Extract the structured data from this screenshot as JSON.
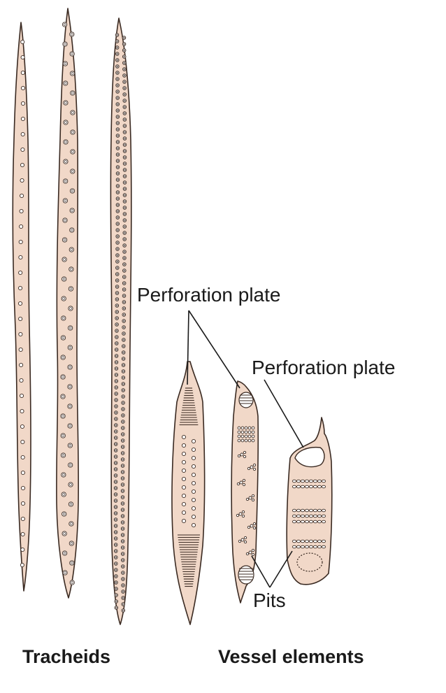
{
  "labels": {
    "perforation_plate_1": "Perforation plate",
    "perforation_plate_2": "Perforation plate",
    "pits": "Pits"
  },
  "captions": {
    "tracheids": "Tracheids",
    "vessel_elements": "Vessel elements"
  },
  "colors": {
    "cell_fill": "#f1d8c8",
    "outline": "#3a2a22",
    "text": "#1a1a1a"
  }
}
